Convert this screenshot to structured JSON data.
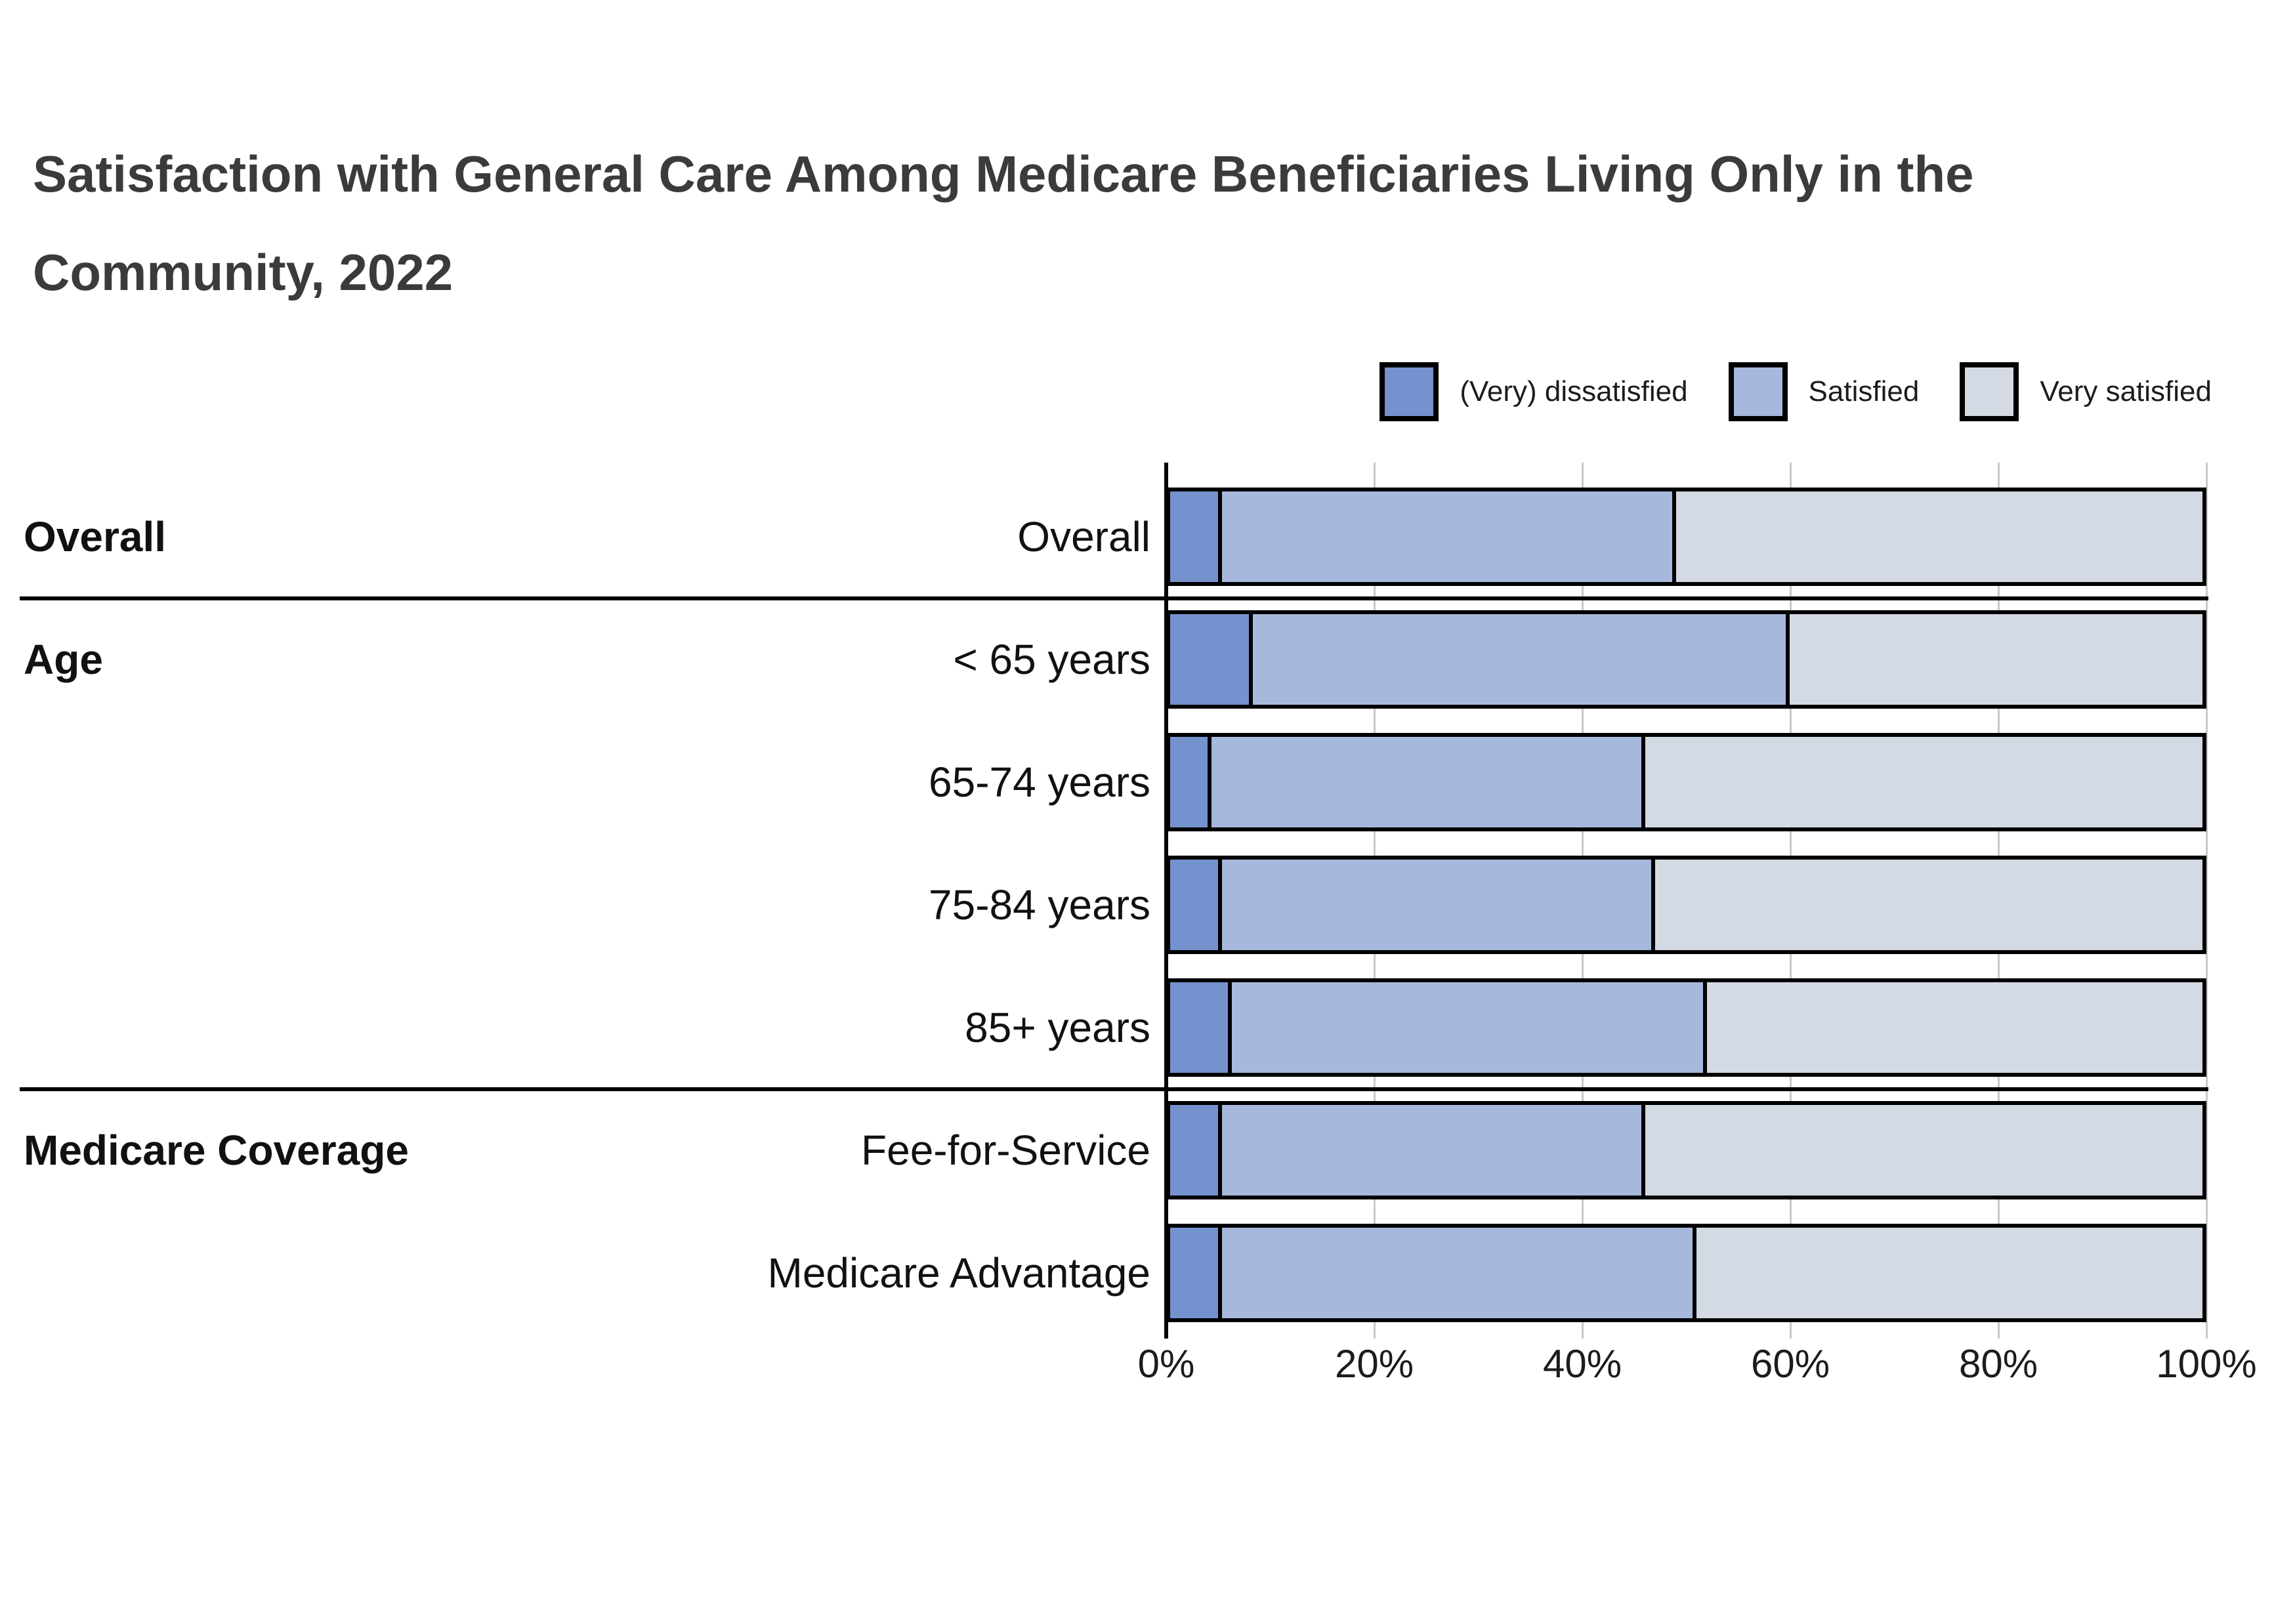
{
  "title": {
    "lines": [
      "Satisfaction with General Care Among Medicare Beneficiaries Living Only in the",
      "Community, 2022"
    ]
  },
  "legend": {
    "items": [
      {
        "label": "(Very) dissatisfied",
        "color": "#7492CD"
      },
      {
        "label": "Satisfied",
        "color": "#A6B9DC"
      },
      {
        "label": "Very satisfied",
        "color": "#D4DAE3"
      }
    ]
  },
  "chart_data": {
    "type": "bar",
    "orientation": "horizontal",
    "stacked": true,
    "title": "Satisfaction with General Care Among Medicare Beneficiaries Living Only in the Community, 2022",
    "categories": [
      "Overall",
      "< 65 years",
      "65-74 years",
      "75-84 years",
      "85+ years",
      "Fee-for-Service",
      "Medicare Advantage"
    ],
    "groups": [
      {
        "label": "Overall",
        "first_row": 0
      },
      {
        "label": "Age",
        "first_row": 1
      },
      {
        "label": "Medicare Coverage",
        "first_row": 5
      }
    ],
    "series": [
      {
        "name": "(Very) dissatisfied",
        "color": "#7492CD",
        "values": [
          5,
          8,
          4,
          5,
          6,
          5,
          5
        ]
      },
      {
        "name": "Satisfied",
        "color": "#A6B9DC",
        "values": [
          44,
          52,
          42,
          42,
          46,
          41,
          46
        ]
      },
      {
        "name": "Very satisfied",
        "color": "#D4DAE3",
        "values": [
          51,
          40,
          54,
          53,
          48,
          54,
          49
        ]
      }
    ],
    "xlabel": "",
    "ylabel": "",
    "xlim": [
      0,
      100
    ],
    "x_tick_labels": [
      "0%",
      "20%",
      "40%",
      "60%",
      "80%",
      "100%"
    ],
    "grid": true,
    "legend_position": "top-right",
    "separators_after_rows": [
      0,
      4
    ]
  },
  "colors": {
    "bar_border": "#000000",
    "gridline": "#c9c9c9",
    "axis_line": "#000000",
    "title_text": "#3b3b3b",
    "label_text": "#111111"
  }
}
